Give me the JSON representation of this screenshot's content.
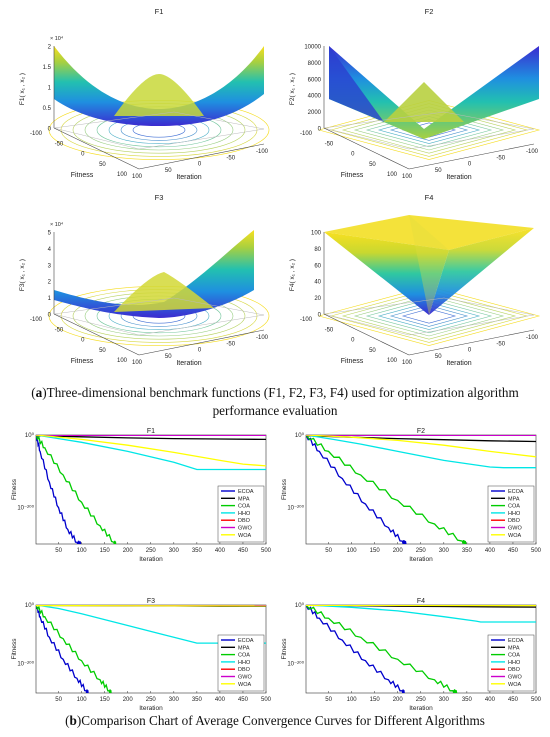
{
  "caption_a": {
    "label": "a",
    "text": "Three-dimensional benchmark functions (F1, F2, F3, F4) used for optimization algorithm performance evaluation"
  },
  "caption_b": {
    "label": "b",
    "text": "Comparison Chart of Average Convergence Curves for Different Algorithms"
  },
  "colors": {
    "ECOA": "#0000cc",
    "MPA": "#000000",
    "COA": "#00cc00",
    "HHO": "#00e6e6",
    "DBO": "#ff0000",
    "GWO": "#cc00cc",
    "WOA": "#ffff00"
  },
  "chart_data": [
    {
      "type": "surface3d",
      "title": "F1",
      "zlabel": "F1( x₁ , x₂ )",
      "xlabel": "Iteration",
      "ylabel": "Fitness",
      "z_scale_label": "× 10⁴",
      "zticks": [
        "0",
        "0.5",
        "1",
        "1.5",
        "2"
      ],
      "xticks": [
        "-100",
        "-50",
        "0",
        "50",
        "100"
      ],
      "yticks": [
        "-100",
        "-50",
        "0",
        "50",
        "100"
      ]
    },
    {
      "type": "surface3d",
      "title": "F2",
      "zlabel": "F2( x₁ , x₂ )",
      "xlabel": "Iteration",
      "ylabel": "Fitness",
      "zticks": [
        "0",
        "2000",
        "4000",
        "6000",
        "8000",
        "10000"
      ],
      "xticks": [
        "-100",
        "-50",
        "0",
        "50",
        "100"
      ],
      "yticks": [
        "-100",
        "-50",
        "0",
        "50",
        "100"
      ]
    },
    {
      "type": "surface3d",
      "title": "F3",
      "zlabel": "F3( x₁ , x₂ )",
      "xlabel": "Iteration",
      "ylabel": "Fitness",
      "z_scale_label": "× 10⁴",
      "zticks": [
        "0",
        "1",
        "2",
        "3",
        "4",
        "5"
      ],
      "xticks": [
        "-100",
        "-50",
        "0",
        "50",
        "100"
      ],
      "yticks": [
        "-100",
        "-50",
        "0",
        "50",
        "100"
      ]
    },
    {
      "type": "surface3d",
      "title": "F4",
      "zlabel": "F4( x₁ , x₂ )",
      "xlabel": "Iteration",
      "ylabel": "Fitness",
      "zticks": [
        "0",
        "20",
        "40",
        "60",
        "80",
        "100"
      ],
      "xticks": [
        "-100",
        "-50",
        "0",
        "50",
        "100"
      ],
      "yticks": [
        "-100",
        "-50",
        "0",
        "50",
        "100"
      ]
    },
    {
      "type": "line",
      "title": "F1",
      "xlabel": "Iteration",
      "ylabel": "Fitness",
      "yscale": "log",
      "legend": "bottom-right",
      "xlim": [
        1,
        500
      ],
      "ylim": [
        -300,
        0
      ],
      "xticks": [
        "50",
        "100",
        "150",
        "200",
        "250",
        "300",
        "350",
        "400",
        "450",
        "500"
      ],
      "yticks": [
        {
          "label": "10⁰",
          "value": 0
        },
        {
          "label": "10⁻²⁰⁰",
          "value": -200
        }
      ],
      "series": [
        {
          "name": "ECOA",
          "x": [
            1,
            10,
            30,
            50,
            70,
            90,
            100
          ],
          "y": [
            0,
            -45,
            -130,
            -200,
            -260,
            -295,
            -300
          ]
        },
        {
          "name": "MPA",
          "x": [
            1,
            100,
            200,
            300,
            400,
            500
          ],
          "y": [
            -2,
            -5,
            -8,
            -10,
            -11,
            -12
          ]
        },
        {
          "name": "COA",
          "x": [
            1,
            20,
            60,
            100,
            140,
            170,
            175
          ],
          "y": [
            0,
            -35,
            -110,
            -185,
            -250,
            -295,
            -300
          ]
        },
        {
          "name": "HHO",
          "x": [
            1,
            50,
            100,
            200,
            300,
            350,
            370,
            400,
            500
          ],
          "y": [
            0,
            -10,
            -20,
            -45,
            -75,
            -95,
            -95,
            -95,
            -95
          ]
        },
        {
          "name": "DBO",
          "x": [
            1,
            500
          ],
          "y": [
            0,
            0
          ]
        },
        {
          "name": "GWO",
          "x": [
            1,
            500
          ],
          "y": [
            -1,
            -1
          ]
        },
        {
          "name": "WOA",
          "x": [
            1,
            100,
            200,
            300,
            400,
            450,
            500
          ],
          "y": [
            0,
            -12,
            -28,
            -48,
            -70,
            -80,
            -85
          ]
        }
      ]
    },
    {
      "type": "line",
      "title": "F2",
      "xlabel": "Iteration",
      "ylabel": "Fitness",
      "yscale": "log",
      "legend": "bottom-right",
      "xlim": [
        1,
        500
      ],
      "ylim": [
        -300,
        0
      ],
      "xticks": [
        "50",
        "100",
        "150",
        "200",
        "250",
        "300",
        "350",
        "400",
        "450",
        "500"
      ],
      "yticks": [
        {
          "label": "10⁰",
          "value": 0
        },
        {
          "label": "10⁻²⁰⁰",
          "value": -200
        }
      ],
      "series": [
        {
          "name": "ECOA",
          "x": [
            1,
            30,
            80,
            130,
            180,
            210,
            220
          ],
          "y": [
            0,
            -45,
            -120,
            -190,
            -255,
            -292,
            -300
          ]
        },
        {
          "name": "MPA",
          "x": [
            1,
            100,
            200,
            300,
            400,
            500
          ],
          "y": [
            -2,
            -6,
            -10,
            -13,
            -16,
            -18
          ]
        },
        {
          "name": "COA",
          "x": [
            1,
            50,
            120,
            200,
            280,
            340,
            350
          ],
          "y": [
            0,
            -45,
            -110,
            -180,
            -245,
            -292,
            -300
          ]
        },
        {
          "name": "HHO",
          "x": [
            1,
            60,
            120,
            200,
            300,
            400,
            430,
            500
          ],
          "y": [
            0,
            -12,
            -25,
            -45,
            -70,
            -88,
            -90,
            -90
          ]
        },
        {
          "name": "DBO",
          "x": [
            1,
            500
          ],
          "y": [
            0,
            0
          ]
        },
        {
          "name": "GWO",
          "x": [
            1,
            500
          ],
          "y": [
            -1,
            -1
          ]
        },
        {
          "name": "WOA",
          "x": [
            1,
            100,
            200,
            300,
            400,
            500
          ],
          "y": [
            0,
            -6,
            -15,
            -28,
            -45,
            -60
          ]
        }
      ]
    },
    {
      "type": "line",
      "title": "F3",
      "xlabel": "Iteration",
      "ylabel": "Fitness",
      "yscale": "log",
      "legend": "bottom-right",
      "xlim": [
        1,
        500
      ],
      "ylim": [
        -300,
        0
      ],
      "xticks": [
        "50",
        "100",
        "150",
        "200",
        "250",
        "300",
        "350",
        "400",
        "450",
        "500"
      ],
      "yticks": [
        {
          "label": "10⁰",
          "value": 0
        },
        {
          "label": "10⁻²⁰⁰",
          "value": -200
        }
      ],
      "series": [
        {
          "name": "ECOA",
          "x": [
            1,
            10,
            30,
            60,
            90,
            110,
            115
          ],
          "y": [
            0,
            -40,
            -110,
            -185,
            -250,
            -292,
            -300
          ]
        },
        {
          "name": "MPA",
          "x": [
            1,
            100,
            200,
            300,
            400,
            500
          ],
          "y": [
            -1,
            -2,
            -3,
            -3,
            -4,
            -4
          ]
        },
        {
          "name": "COA",
          "x": [
            1,
            20,
            60,
            100,
            140,
            160,
            165
          ],
          "y": [
            0,
            -40,
            -115,
            -190,
            -255,
            -292,
            -300
          ]
        },
        {
          "name": "HHO",
          "x": [
            1,
            50,
            100,
            200,
            300,
            350,
            360,
            500
          ],
          "y": [
            0,
            -12,
            -30,
            -70,
            -110,
            -130,
            -130,
            -130
          ]
        },
        {
          "name": "DBO",
          "x": [
            1,
            500
          ],
          "y": [
            0,
            0
          ]
        },
        {
          "name": "GWO",
          "x": [
            1,
            500
          ],
          "y": [
            -1,
            -1
          ]
        },
        {
          "name": "WOA",
          "x": [
            1,
            500
          ],
          "y": [
            -2,
            -3
          ]
        }
      ]
    },
    {
      "type": "line",
      "title": "F4",
      "xlabel": "Iteration",
      "ylabel": "Fitness",
      "yscale": "log",
      "legend": "bottom-right",
      "xlim": [
        1,
        500
      ],
      "ylim": [
        -300,
        0
      ],
      "xticks": [
        "50",
        "100",
        "150",
        "200",
        "250",
        "300",
        "350",
        "400",
        "450",
        "500"
      ],
      "yticks": [
        {
          "label": "10⁰",
          "value": 0
        },
        {
          "label": "10⁻²⁰⁰",
          "value": -200
        }
      ],
      "series": [
        {
          "name": "ECOA",
          "x": [
            1,
            30,
            80,
            130,
            180,
            210,
            215
          ],
          "y": [
            0,
            -45,
            -120,
            -190,
            -255,
            -292,
            -300
          ]
        },
        {
          "name": "MPA",
          "x": [
            1,
            100,
            200,
            300,
            400,
            500
          ],
          "y": [
            -1,
            -2,
            -4,
            -5,
            -6,
            -7
          ]
        },
        {
          "name": "COA",
          "x": [
            1,
            50,
            120,
            200,
            280,
            320,
            330
          ],
          "y": [
            0,
            -45,
            -110,
            -185,
            -255,
            -292,
            -300
          ]
        },
        {
          "name": "HHO",
          "x": [
            1,
            100,
            200,
            300,
            370,
            380,
            500
          ],
          "y": [
            0,
            -8,
            -20,
            -40,
            -55,
            -58,
            -58
          ]
        },
        {
          "name": "DBO",
          "x": [
            1,
            500
          ],
          "y": [
            0,
            0
          ]
        },
        {
          "name": "GWO",
          "x": [
            1,
            500
          ],
          "y": [
            -1,
            -1
          ]
        },
        {
          "name": "WOA",
          "x": [
            1,
            500
          ],
          "y": [
            -1,
            -2
          ]
        }
      ]
    }
  ]
}
